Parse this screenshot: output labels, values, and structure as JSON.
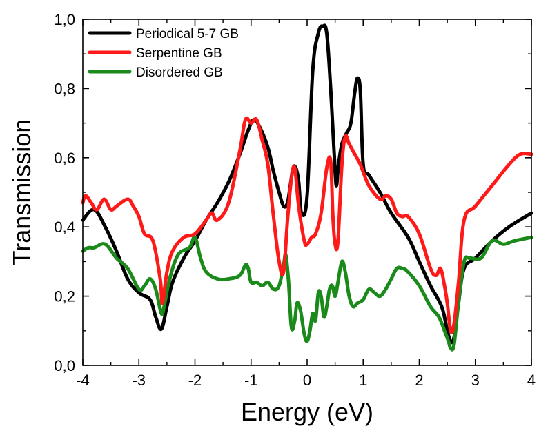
{
  "chart_data": {
    "type": "line",
    "title": "",
    "xlabel": "Energy (eV)",
    "ylabel": "Transmission",
    "xlim": [
      -4,
      4
    ],
    "ylim": [
      0,
      1
    ],
    "x_ticks": [
      -4,
      -3,
      -2,
      -1,
      0,
      1,
      2,
      3,
      4
    ],
    "x_tick_labels": [
      "-4",
      "-3",
      "-2",
      "-1",
      "0",
      "1",
      "2",
      "3",
      "4"
    ],
    "y_ticks": [
      0,
      0.2,
      0.4,
      0.6,
      0.8,
      1.0
    ],
    "y_tick_labels": [
      "0,0",
      "0,2",
      "0,4",
      "0,6",
      "0,8",
      "1,0"
    ],
    "grid": false,
    "legend_position": "top-left",
    "series": [
      {
        "name": "Periodical 5-7 GB",
        "color": "#000000",
        "x": [
          -4,
          -3.8,
          -3.6,
          -3.4,
          -3.2,
          -3.0,
          -2.8,
          -2.7,
          -2.6,
          -2.5,
          -2.4,
          -2.2,
          -2.0,
          -1.8,
          -1.6,
          -1.4,
          -1.2,
          -1.05,
          -0.95,
          -0.85,
          -0.7,
          -0.6,
          -0.5,
          -0.42,
          -0.35,
          -0.3,
          -0.25,
          -0.2,
          -0.15,
          -0.1,
          0.0,
          0.1,
          0.2,
          0.28,
          0.35,
          0.42,
          0.48,
          0.52,
          0.56,
          0.62,
          0.7,
          0.78,
          0.85,
          0.9,
          0.95,
          1.0,
          1.1,
          1.3,
          1.5,
          1.8,
          2.0,
          2.2,
          2.4,
          2.5,
          2.56,
          2.62,
          2.7,
          2.8,
          3.0,
          3.3,
          3.6,
          4.0
        ],
        "y": [
          0.42,
          0.45,
          0.4,
          0.33,
          0.25,
          0.21,
          0.19,
          0.14,
          0.105,
          0.17,
          0.24,
          0.31,
          0.36,
          0.42,
          0.47,
          0.53,
          0.61,
          0.68,
          0.71,
          0.69,
          0.63,
          0.56,
          0.5,
          0.46,
          0.47,
          0.52,
          0.57,
          0.57,
          0.53,
          0.44,
          0.49,
          0.85,
          0.96,
          0.98,
          0.96,
          0.8,
          0.62,
          0.52,
          0.58,
          0.64,
          0.67,
          0.7,
          0.79,
          0.83,
          0.79,
          0.58,
          0.55,
          0.5,
          0.44,
          0.37,
          0.3,
          0.23,
          0.17,
          0.1,
          0.07,
          0.08,
          0.18,
          0.28,
          0.31,
          0.36,
          0.4,
          0.44
        ]
      },
      {
        "name": "Serpentine GB",
        "color": "#ff1a1a",
        "x": [
          -4,
          -3.95,
          -3.85,
          -3.75,
          -3.62,
          -3.5,
          -3.4,
          -3.2,
          -3.1,
          -3.0,
          -2.9,
          -2.75,
          -2.62,
          -2.58,
          -2.5,
          -2.4,
          -2.2,
          -2.0,
          -1.8,
          -1.7,
          -1.6,
          -1.4,
          -1.2,
          -1.1,
          -1.0,
          -0.9,
          -0.8,
          -0.7,
          -0.6,
          -0.5,
          -0.42,
          -0.35,
          -0.28,
          -0.22,
          -0.15,
          -0.05,
          0.0,
          0.08,
          0.15,
          0.25,
          0.35,
          0.42,
          0.46,
          0.5,
          0.55,
          0.62,
          0.68,
          0.75,
          0.85,
          0.95,
          1.1,
          1.3,
          1.4,
          1.5,
          1.6,
          1.7,
          1.8,
          2.0,
          2.2,
          2.3,
          2.38,
          2.45,
          2.5,
          2.56,
          2.62,
          2.7,
          2.8,
          3.0,
          3.3,
          3.6,
          3.8,
          4.0
        ],
        "y": [
          0.47,
          0.49,
          0.47,
          0.45,
          0.48,
          0.45,
          0.46,
          0.48,
          0.46,
          0.43,
          0.38,
          0.36,
          0.25,
          0.18,
          0.27,
          0.33,
          0.37,
          0.38,
          0.42,
          0.44,
          0.42,
          0.47,
          0.62,
          0.71,
          0.7,
          0.71,
          0.65,
          0.58,
          0.43,
          0.3,
          0.27,
          0.42,
          0.54,
          0.57,
          0.46,
          0.36,
          0.35,
          0.37,
          0.38,
          0.44,
          0.57,
          0.59,
          0.43,
          0.35,
          0.36,
          0.58,
          0.66,
          0.64,
          0.61,
          0.58,
          0.52,
          0.48,
          0.49,
          0.48,
          0.44,
          0.43,
          0.43,
          0.38,
          0.28,
          0.26,
          0.28,
          0.23,
          0.18,
          0.1,
          0.12,
          0.24,
          0.42,
          0.46,
          0.52,
          0.58,
          0.61,
          0.61
        ]
      },
      {
        "name": "Disordered GB",
        "color": "#1a8a1a",
        "x": [
          -4,
          -3.9,
          -3.8,
          -3.6,
          -3.4,
          -3.2,
          -3.0,
          -2.9,
          -2.8,
          -2.7,
          -2.6,
          -2.55,
          -2.45,
          -2.3,
          -2.1,
          -2.0,
          -1.9,
          -1.8,
          -1.6,
          -1.4,
          -1.2,
          -1.1,
          -1.05,
          -1.0,
          -0.9,
          -0.8,
          -0.7,
          -0.6,
          -0.5,
          -0.42,
          -0.38,
          -0.33,
          -0.28,
          -0.22,
          -0.18,
          -0.12,
          -0.05,
          0.0,
          0.05,
          0.1,
          0.15,
          0.2,
          0.25,
          0.3,
          0.35,
          0.4,
          0.45,
          0.5,
          0.55,
          0.62,
          0.68,
          0.75,
          0.82,
          0.9,
          1.0,
          1.1,
          1.2,
          1.3,
          1.4,
          1.5,
          1.6,
          1.7,
          1.8,
          2.0,
          2.2,
          2.35,
          2.45,
          2.52,
          2.56,
          2.62,
          2.7,
          2.8,
          2.9,
          3.1,
          3.3,
          3.5,
          3.7,
          4.0
        ],
        "y": [
          0.33,
          0.34,
          0.34,
          0.35,
          0.31,
          0.28,
          0.22,
          0.23,
          0.25,
          0.22,
          0.15,
          0.17,
          0.25,
          0.32,
          0.34,
          0.37,
          0.31,
          0.27,
          0.25,
          0.25,
          0.26,
          0.29,
          0.28,
          0.24,
          0.24,
          0.23,
          0.24,
          0.22,
          0.23,
          0.29,
          0.32,
          0.24,
          0.11,
          0.13,
          0.18,
          0.16,
          0.09,
          0.07,
          0.1,
          0.15,
          0.13,
          0.21,
          0.2,
          0.14,
          0.17,
          0.22,
          0.23,
          0.2,
          0.24,
          0.3,
          0.27,
          0.2,
          0.17,
          0.18,
          0.19,
          0.22,
          0.21,
          0.2,
          0.22,
          0.25,
          0.28,
          0.28,
          0.27,
          0.23,
          0.17,
          0.14,
          0.1,
          0.07,
          0.05,
          0.06,
          0.18,
          0.3,
          0.31,
          0.31,
          0.36,
          0.35,
          0.36,
          0.37
        ]
      }
    ]
  }
}
